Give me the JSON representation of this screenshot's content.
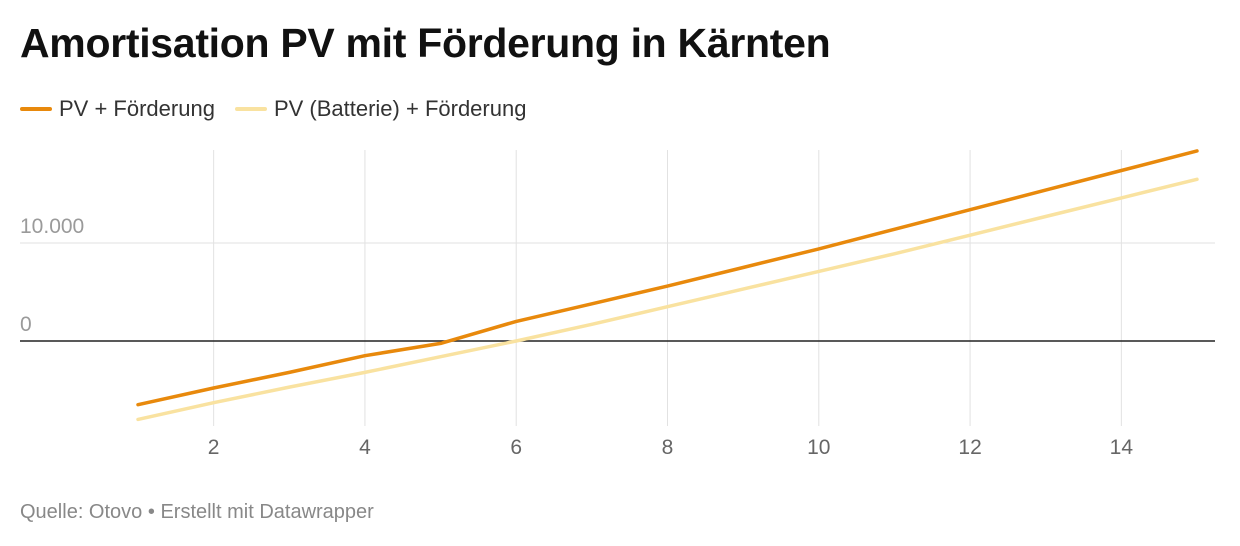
{
  "title": "Amortisation PV mit Förderung in Kärnten",
  "footer": {
    "source": "Quelle: Otovo",
    "separator": "•",
    "credit": "Erstellt mit Datawrapper"
  },
  "chart_data": {
    "type": "line",
    "title": "Amortisation PV mit Förderung in Kärnten",
    "xlabel": "",
    "ylabel": "",
    "x": [
      1,
      2,
      3,
      4,
      5,
      6,
      7,
      8,
      9,
      10,
      11,
      12,
      13,
      14,
      15
    ],
    "xlim": [
      1,
      15
    ],
    "ylim": [
      -8000,
      19500
    ],
    "x_ticks": [
      2,
      4,
      6,
      8,
      10,
      12,
      14
    ],
    "x_tick_labels": [
      "2",
      "4",
      "6",
      "8",
      "10",
      "12",
      "14"
    ],
    "y_ticks": [
      0,
      10000
    ],
    "y_tick_labels": [
      "0",
      "10.000"
    ],
    "grid": true,
    "legend": "top-left",
    "series": [
      {
        "name": "PV + Förderung",
        "color": "#e8890c",
        "values": [
          -6500,
          -4800,
          -3200,
          -1500,
          -250,
          2000,
          3800,
          5600,
          7500,
          9400,
          11400,
          13400,
          15400,
          17400,
          19400
        ]
      },
      {
        "name": "PV (Batterie) + Förderung",
        "color": "#f9e2a0",
        "values": [
          -8000,
          -6300,
          -4700,
          -3200,
          -1600,
          0,
          1700,
          3500,
          5300,
          7100,
          8900,
          10800,
          12700,
          14600,
          16500
        ]
      }
    ]
  }
}
